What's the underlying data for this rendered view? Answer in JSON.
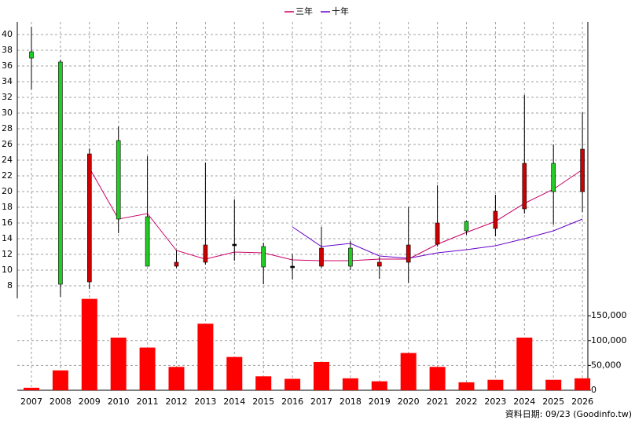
{
  "chart_data": {
    "type": "candlestick",
    "categories": [
      "2007",
      "2008",
      "2009",
      "2010",
      "2011",
      "2012",
      "2013",
      "2014",
      "2015",
      "2016",
      "2017",
      "2018",
      "2019",
      "2020",
      "2021",
      "2022",
      "2023",
      "2024",
      "2025",
      "2026"
    ],
    "open": [
      37.8,
      36.5,
      8.5,
      26.5,
      16.8,
      10.5,
      11.0,
      13.3,
      13.0,
      10.5,
      10.5,
      12.8,
      10.5,
      11.0,
      13.3,
      16.2,
      15.3,
      17.8,
      23.6,
      20.0
    ],
    "high": [
      41.0,
      36.8,
      25.5,
      28.3,
      24.5,
      12.5,
      23.7,
      19.0,
      13.5,
      12.0,
      15.5,
      13.7,
      11.7,
      18.0,
      20.8,
      16.3,
      19.6,
      32.3,
      26.0,
      30.1
    ],
    "low": [
      33.0,
      6.6,
      7.6,
      14.7,
      10.5,
      10.3,
      10.7,
      11.2,
      8.2,
      8.8,
      10.3,
      10.0,
      8.9,
      8.4,
      13.0,
      14.5,
      14.3,
      17.2,
      15.8,
      17.4
    ],
    "close": [
      37.0,
      8.2,
      24.8,
      16.5,
      10.5,
      11.0,
      13.2,
      13.3,
      10.4,
      10.5,
      12.8,
      10.5,
      11.0,
      13.2,
      16.0,
      15.0,
      17.5,
      23.6,
      20.0,
      25.4
    ],
    "up_color": "#cc0000",
    "down_color": "#22cc22",
    "flat_color": "#000000",
    "ylim": [
      6.4,
      41.6
    ],
    "yticks": [
      8,
      10,
      12,
      14,
      16,
      18,
      20,
      22,
      24,
      26,
      28,
      30,
      32,
      34,
      36,
      38,
      40
    ],
    "grid": true,
    "series": [
      {
        "name": "三年",
        "color": "#cc0066",
        "values": [
          null,
          null,
          23.0,
          16.5,
          17.2,
          12.5,
          11.4,
          12.3,
          12.2,
          11.3,
          11.2,
          11.2,
          11.4,
          11.4,
          13.3,
          14.8,
          16.2,
          18.5,
          20.3,
          22.8
        ]
      },
      {
        "name": "十年",
        "color": "#6600cc",
        "values": [
          null,
          null,
          null,
          null,
          null,
          null,
          null,
          null,
          null,
          15.5,
          13.0,
          13.4,
          11.8,
          11.5,
          12.2,
          12.6,
          13.1,
          14.0,
          15.0,
          16.5
        ]
      }
    ],
    "volume": {
      "color": "#ff0000",
      "axis": "y2",
      "values": [
        5000,
        40000,
        184000,
        106000,
        86000,
        47000,
        134000,
        67000,
        28000,
        23000,
        57000,
        24000,
        18000,
        75000,
        47000,
        16000,
        21000,
        106000,
        21000,
        24000
      ]
    },
    "y2lim": [
      0,
      185000
    ],
    "y2ticks": [
      0,
      {
        "value": 50000,
        "label": "50,000"
      },
      {
        "value": 100000,
        "label": "100,000"
      },
      {
        "value": 150000,
        "label": "150,000"
      }
    ],
    "note": "資料日期: 09/23 (Goodinfo.tw)"
  }
}
